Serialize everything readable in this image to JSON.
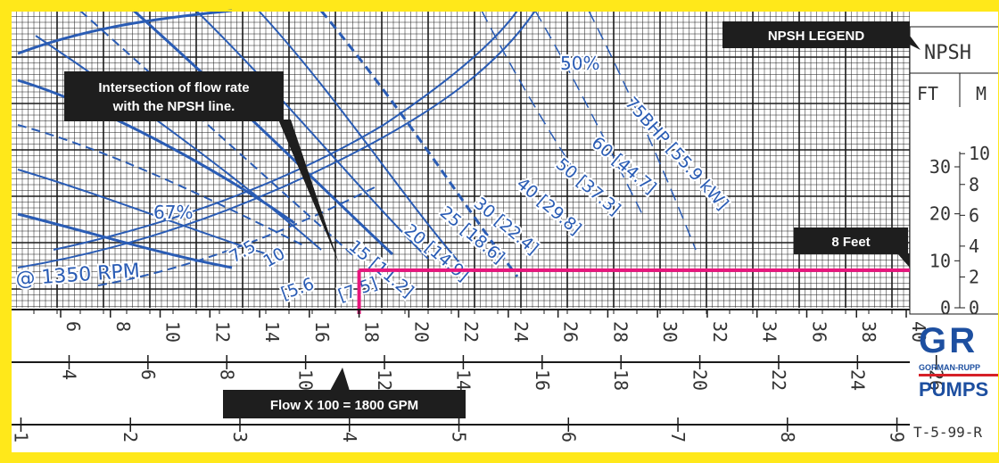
{
  "colors": {
    "frame": "#ffe81a",
    "grid": "#1a1a1a",
    "curve": "#2a5cb4",
    "npsh_line": "#e8167d",
    "callout_bg": "#1e1e1e",
    "callout_text": "#ffffff",
    "logo_blue": "#1d4fa0",
    "logo_red": "#d62028"
  },
  "chart_data": {
    "type": "line",
    "title": "",
    "rpm_label": "@ 1350 RPM",
    "efficiency_labels": [
      "50%",
      "67%"
    ],
    "hp_labels": [
      "7.5",
      "10",
      "15 [11.2]",
      "20 [14.9]",
      "25 [18.6]",
      "30 [22.4]",
      "40 [29.8]",
      "50 [37.3]",
      "60 [44.7]",
      "75BHP [55.9 kW]"
    ],
    "partial_labels": [
      "[5.6",
      "[7.5]"
    ],
    "npsh_legend": {
      "title": "NPSH LEGEND",
      "header": "NPSH",
      "col_ft": "FT",
      "col_m": "M",
      "ft_ticks": [
        "30",
        "20",
        "10",
        "0"
      ],
      "m_ticks": [
        "10",
        "8",
        "6",
        "4",
        "2",
        "0"
      ]
    },
    "x_axis_gpm_x100": {
      "ticks": [
        "6",
        "8",
        "10",
        "12",
        "14",
        "16",
        "18",
        "20",
        "22",
        "24",
        "26",
        "28",
        "30",
        "32",
        "34",
        "36",
        "38",
        "40"
      ]
    },
    "x_axis_lps": {
      "ticks": [
        "4",
        "6",
        "8",
        "10",
        "12",
        "14",
        "16",
        "18",
        "20",
        "22",
        "24",
        "26"
      ]
    },
    "x_axis_m3": {
      "ticks": [
        "1",
        "2",
        "3",
        "4",
        "5",
        "6",
        "7",
        "8",
        "9"
      ]
    },
    "npsh_reading": {
      "flow_x100": 18,
      "npsh_ft": 8
    },
    "callouts": {
      "intersection": "Intersection of flow rate with the NPSH line.",
      "npsh_value": "8 Feet",
      "flow_value": "Flow X 100 = 1800 GPM"
    },
    "footer_code": "T-5-99-R"
  },
  "logo": {
    "mark": "G R",
    "name": "GORMAN-RUPP",
    "tag": "PUMPS"
  }
}
